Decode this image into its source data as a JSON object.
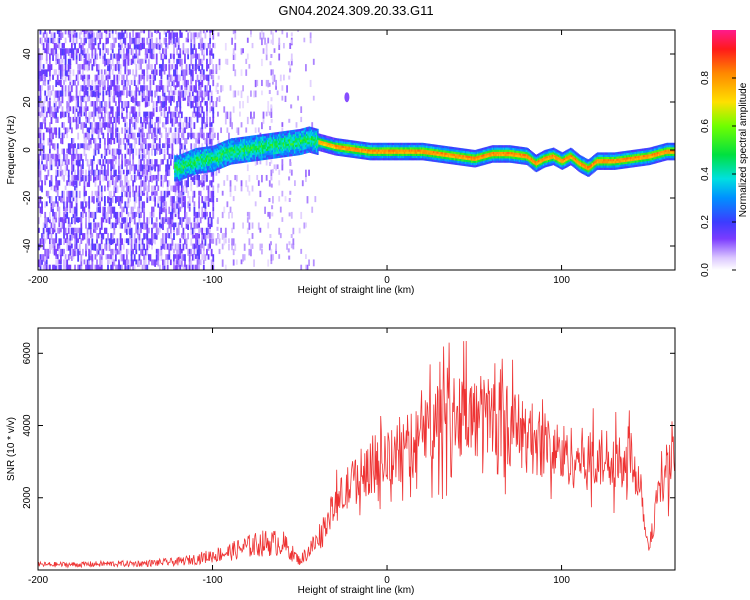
{
  "title": "GN04.2024.309.20.33.G11",
  "colors": {
    "snr_line": "#ee3333",
    "axis": "#000000"
  },
  "chart_data": [
    {
      "type": "heatmap",
      "xlabel": "Height of straight line (km)",
      "ylabel": "Frequency (Hz)",
      "xlim": [
        -200,
        165
      ],
      "ylim": [
        -50,
        50
      ],
      "x_ticks": [
        -200,
        -100,
        0,
        100
      ],
      "x_tick_labels": [
        "-200",
        "-100",
        "0",
        "100"
      ],
      "y_ticks": [
        -40,
        -20,
        0,
        20,
        40
      ],
      "y_tick_labels": [
        "-40",
        "-20",
        "0",
        "20",
        "40"
      ],
      "colorbar": {
        "label": "Normalized spectral amplitude",
        "range": [
          0,
          1
        ],
        "ticks": [
          0.0,
          0.2,
          0.4,
          0.6,
          0.8
        ],
        "tick_labels": [
          "0.0",
          "0.2",
          "0.4",
          "0.6",
          "0.8"
        ],
        "colormap": "rainbow-white"
      },
      "ridge": {
        "x": [
          -120,
          -110,
          -100,
          -90,
          -80,
          -70,
          -60,
          -50,
          -45,
          -40,
          -30,
          -20,
          -10,
          0,
          10,
          20,
          30,
          40,
          50,
          60,
          70,
          80,
          85,
          90,
          95,
          100,
          105,
          110,
          115,
          120,
          130,
          140,
          150,
          160,
          165
        ],
        "y": [
          -8,
          -5,
          -4,
          -1,
          0,
          1,
          2,
          3,
          4,
          3,
          1,
          0,
          -1,
          -1,
          -1,
          -1,
          -2,
          -3,
          -4,
          -2,
          -2,
          -3,
          -6,
          -4,
          -3,
          -5,
          -3,
          -6,
          -8,
          -5,
          -5,
          -4,
          -3,
          -1,
          -1
        ]
      },
      "isolated_blob": {
        "x": -23,
        "y": 22
      }
    },
    {
      "type": "line",
      "xlabel": "Height of straight line (km)",
      "ylabel": "SNR (10 * v/v)",
      "xlim": [
        -200,
        165
      ],
      "ylim": [
        0,
        6700
      ],
      "x_ticks": [
        -200,
        -100,
        0,
        100
      ],
      "x_tick_labels": [
        "-200",
        "-100",
        "0",
        "100"
      ],
      "y_ticks": [
        2000,
        4000,
        6000
      ],
      "y_tick_labels": [
        "2000",
        "4000",
        "6000"
      ],
      "series": [
        {
          "color": "#ee3333",
          "x": [
            -200,
            -180,
            -160,
            -140,
            -120,
            -110,
            -100,
            -90,
            -80,
            -70,
            -60,
            -50,
            -40,
            -30,
            -20,
            -10,
            0,
            10,
            20,
            30,
            40,
            50,
            60,
            70,
            80,
            90,
            100,
            110,
            120,
            130,
            140,
            145,
            150,
            155,
            160,
            165
          ],
          "y": [
            150,
            150,
            170,
            180,
            230,
            300,
            400,
            500,
            650,
            750,
            750,
            250,
            800,
            1800,
            2400,
            2900,
            3000,
            3300,
            3700,
            4300,
            4400,
            4200,
            4300,
            4000,
            3700,
            3500,
            3200,
            3100,
            3000,
            3200,
            3100,
            2500,
            500,
            2000,
            2800,
            3000
          ]
        }
      ]
    }
  ]
}
